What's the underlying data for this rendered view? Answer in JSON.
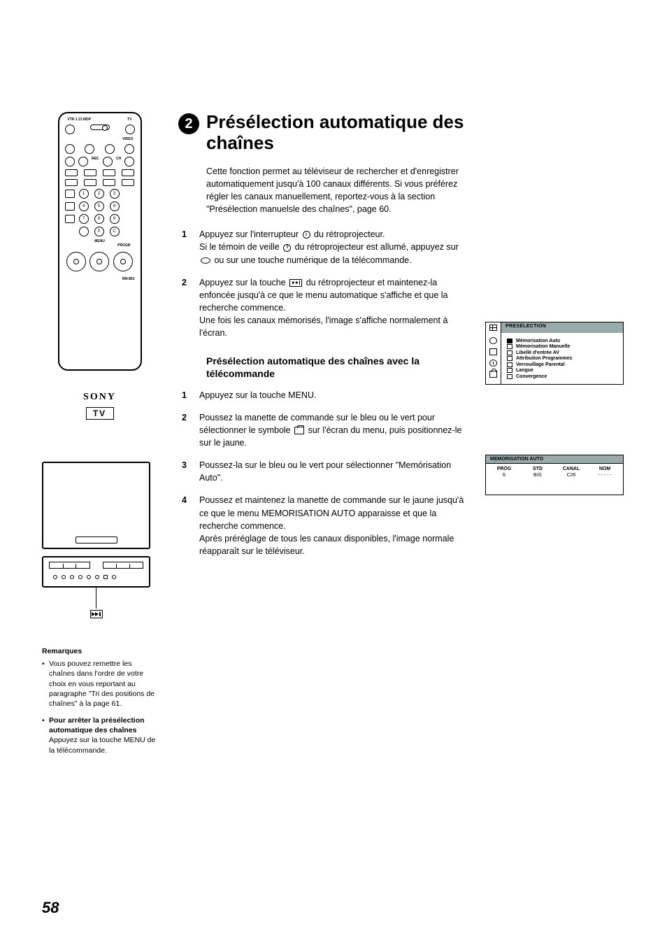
{
  "remote": {
    "topLabels": {
      "left": "VTR 1 23 MDP",
      "right": "TV"
    },
    "videoLabel": "VIDEO",
    "recLabel": "REC",
    "chLabel": "CH",
    "progrLabel": "PROGR",
    "menuLabel": "MENU",
    "numbers": [
      "1",
      "2",
      "3",
      "4",
      "5",
      "6",
      "7",
      "8",
      "9",
      "0"
    ],
    "cLabel": "C",
    "model": "RM-862"
  },
  "logo": {
    "brand": "SONY",
    "tv": "TV"
  },
  "notes": {
    "heading": "Remarques",
    "item1": "Vous pouvez remettre les chaînes dans l'ordre de votre choix en vous reportant au paragraphe \"Tri des positions de chaînes\" à la page 61.",
    "item2_bold": "Pour arrêter la présélection automatique des chaînes",
    "item2_rest": "Appuyez sur la touche MENU de la télécommande."
  },
  "main": {
    "badge": "2",
    "title": "Présélection automatique des chaînes",
    "intro": "Cette fonction permet au téléviseur de rechercher et d'enregistrer automatiquement jusqu'à 100 canaux différents. Si vous préférez régler les canaux manuellement, reportez-vous à la section \"Présélection manuelsle des chaînes\", page 60.",
    "step1_num": "1",
    "step1_a": "Appuyez sur l'interrupteur ",
    "step1_b": " du rétroprojecteur.",
    "step1_c": "Si le témoin de veille ",
    "step1_d": " du rétroprojecteur est  allumé, appuyez sur ",
    "step1_e": " ou sur une touche numérique de la télécommande.",
    "step2_num": "2",
    "step2_a": "Appuyez sur la touche  ",
    "step2_b": "  du rétroprojecteur et maintenez-la enfoncée jusqu'à ce que le menu automatique s'affiche et que la recherche commence.",
    "step2_c": "Une fois les canaux mémorisés, l'image s'affiche normalement à l'écran.",
    "subheading": "Présélection automatique des chaînes avec la télécommande",
    "r1_num": "1",
    "r1": "Appuyez sur la touche MENU.",
    "r2_num": "2",
    "r2_a": "Poussez la manette de commande sur le bleu ou le vert pour sélectionner le symbole  ",
    "r2_b": "  sur l'écran du menu, puis positionnez-le sur le jaune.",
    "r3_num": "3",
    "r3": "Poussez-la sur le bleu ou le vert pour sélectionner \"Memórisation Auto\".",
    "r4_num": "4",
    "r4_a": "Poussez et maintenez la manette de commande sur le jaune jusqu'à ce que le menu MEMORISATION AUTO apparaisse et que la recherche commence.",
    "r4_b": "Après préréglage de tous les canaux disponibles, l'image normale réapparaît sur le téléviseur."
  },
  "osd1": {
    "header": "PRESELECTION",
    "items": [
      "Mémorisation Auto",
      "Mémorisation Manuelle",
      "Libellé d'entrée AV",
      "Attribution Programmes",
      "Verrouillage Parental",
      "Langue",
      "Convergence"
    ],
    "selectedIndex": 0
  },
  "osd2": {
    "header": "MEMORISATION AUTO",
    "cols": [
      "PROG",
      "STD",
      "CANAL",
      "NOM"
    ],
    "rows": [
      "6",
      "B/G",
      "C26",
      "- - - - -"
    ]
  },
  "pageNumber": "58"
}
